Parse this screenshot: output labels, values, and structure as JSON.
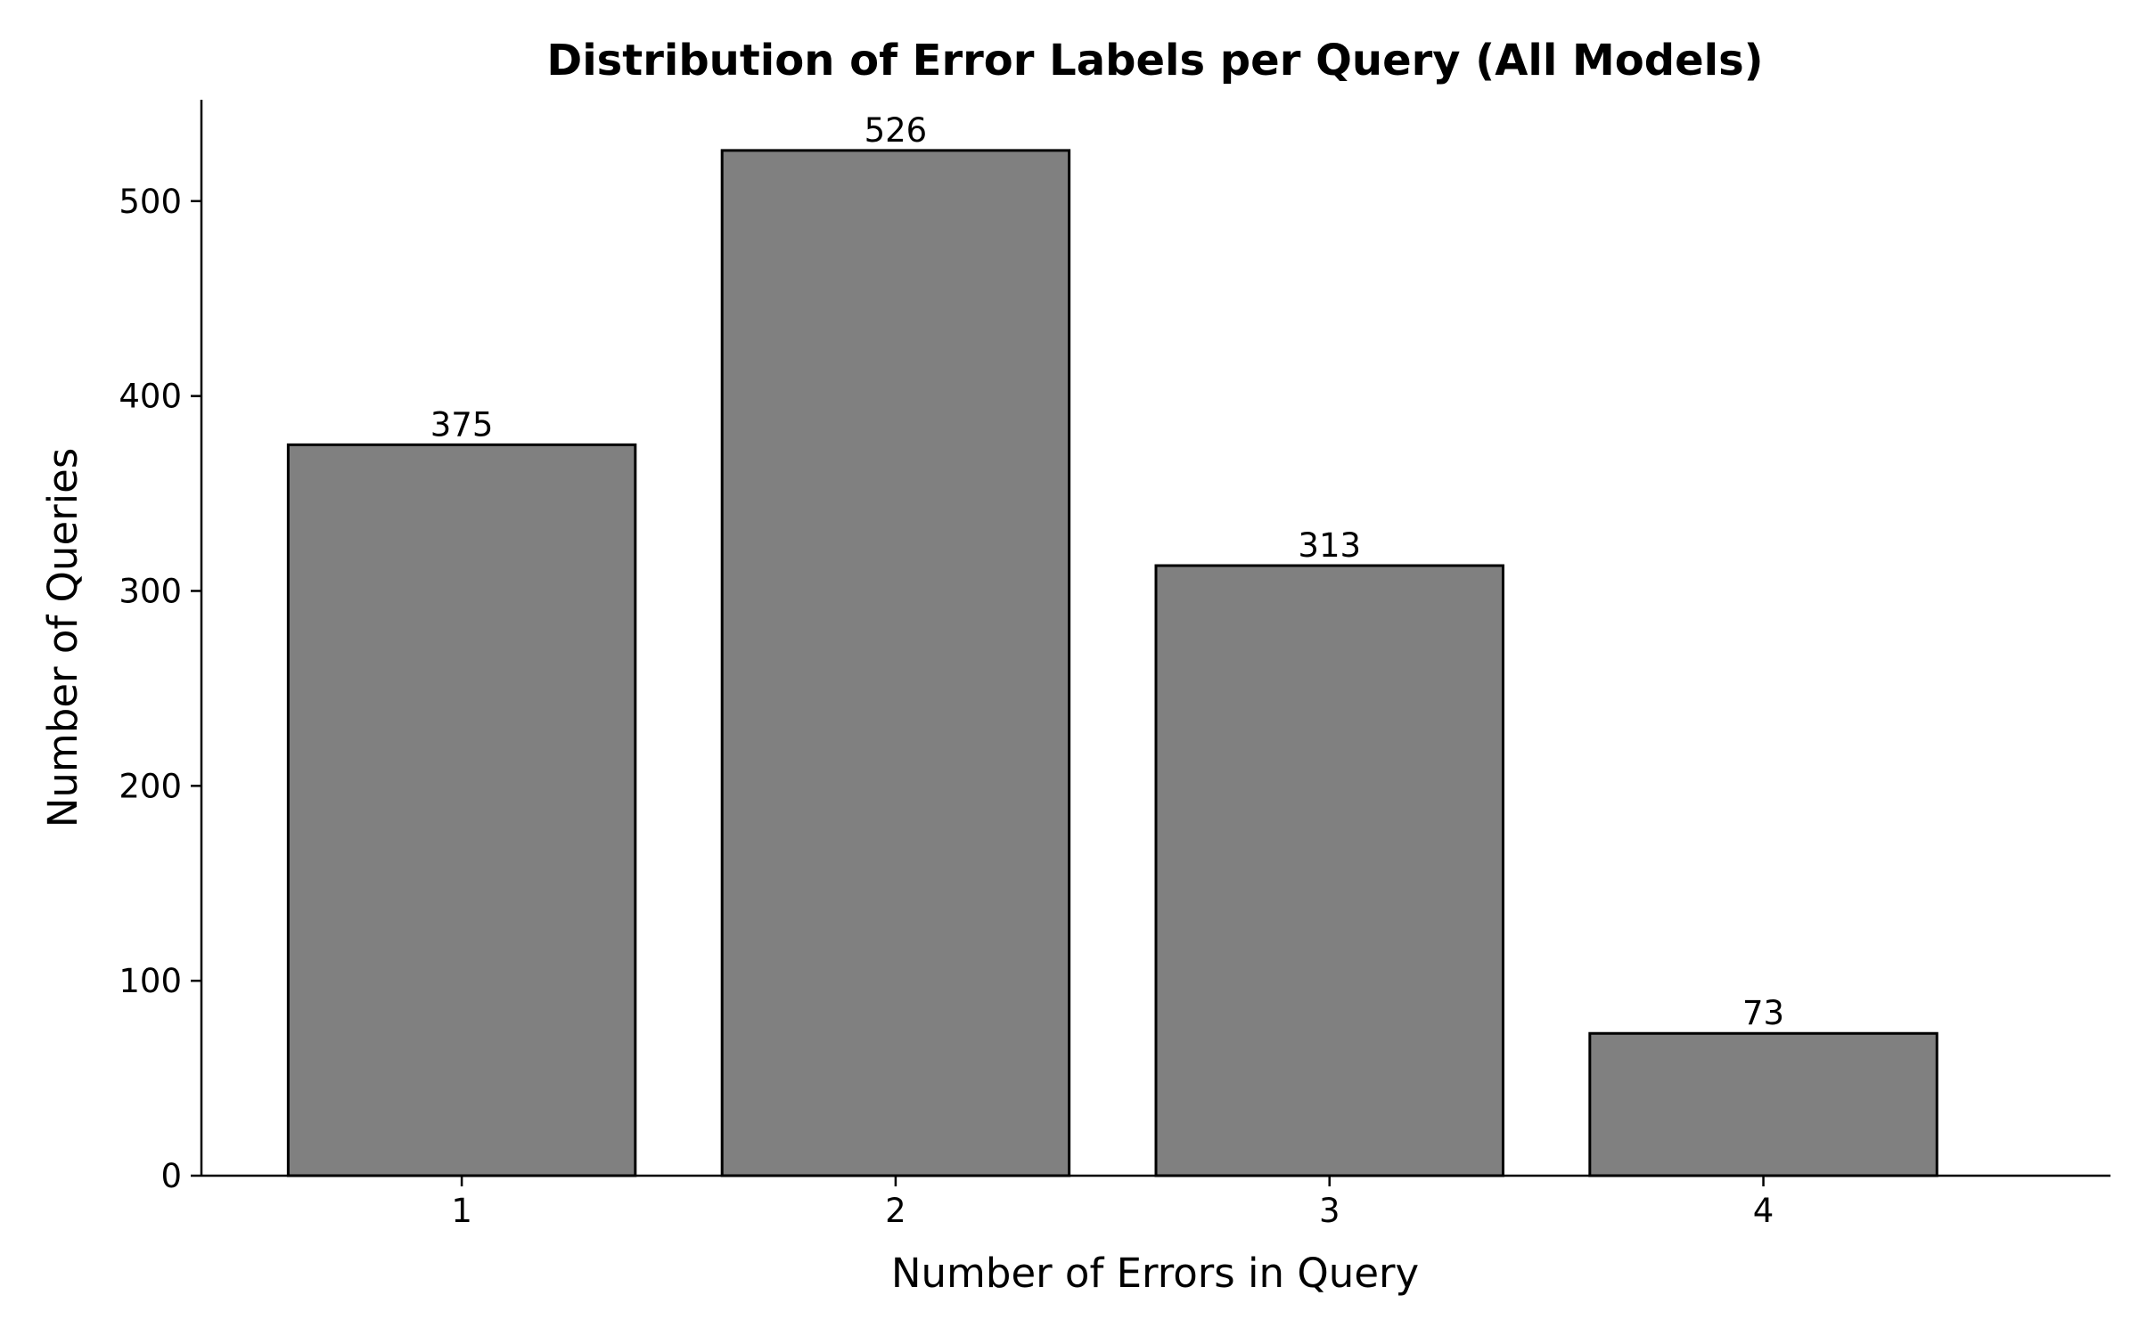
{
  "chart_data": {
    "type": "bar",
    "title": "Distribution of Error Labels per Query (All Models)",
    "xlabel": "Number of Errors in Query",
    "ylabel": "Number of Queries",
    "categories": [
      "1",
      "2",
      "3",
      "4"
    ],
    "values": [
      375,
      526,
      313,
      73
    ],
    "ylim": [
      0,
      552
    ],
    "yticks": [
      0,
      100,
      200,
      300,
      400,
      500
    ],
    "grid": false,
    "legend": "none",
    "bar_color": "#808080",
    "edge_color": "#000000"
  }
}
